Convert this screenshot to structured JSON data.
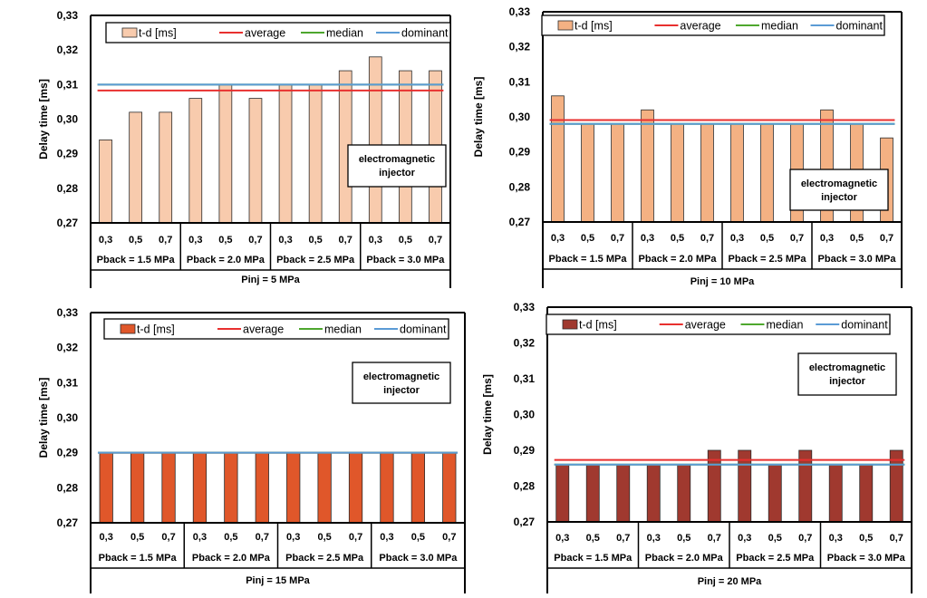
{
  "chart_data": [
    {
      "type": "bar",
      "panel": "top-left",
      "xlabel": "Pinj = 5 MPa",
      "ylabel": "Delay time [ms]",
      "ylim": [
        0.27,
        0.33
      ],
      "yticks": [
        "0,27",
        "0,28",
        "0,29",
        "0,30",
        "0,31",
        "0,32",
        "0,33"
      ],
      "categories": [
        "0,3",
        "0,5",
        "0,7",
        "0,3",
        "0,5",
        "0,7",
        "0,3",
        "0,5",
        "0,7",
        "0,3",
        "0,5",
        "0,7"
      ],
      "groups": [
        "Pback = 1.5 MPa",
        "Pback = 2.0 MPa",
        "Pback = 2.5 MPa",
        "Pback = 3.0 MPa"
      ],
      "series": [
        {
          "name": "t-d [ms]",
          "color": "#f8cbad",
          "values": [
            0.294,
            0.302,
            0.302,
            0.306,
            0.31,
            0.306,
            0.31,
            0.31,
            0.314,
            0.318,
            0.314,
            0.314
          ]
        }
      ],
      "lines": [
        {
          "name": "average",
          "color": "#e8302f",
          "value": 0.3083
        },
        {
          "name": "median",
          "color": "#4ea72e",
          "value": 0.31
        },
        {
          "name": "dominant",
          "color": "#5b9bd5",
          "value": 0.31
        }
      ],
      "annotation": [
        "electromagnetic",
        "injector"
      ]
    },
    {
      "type": "bar",
      "panel": "top-right",
      "xlabel": "Pinj = 10 MPa",
      "ylabel": "Delay time [ms]",
      "ylim": [
        0.27,
        0.33
      ],
      "yticks": [
        "0,27",
        "0,28",
        "0,29",
        "0,30",
        "0,31",
        "0,32",
        "0,33"
      ],
      "categories": [
        "0,3",
        "0,5",
        "0,7",
        "0,3",
        "0,5",
        "0,7",
        "0,3",
        "0,5",
        "0,7",
        "0,3",
        "0,5",
        "0,7"
      ],
      "groups": [
        "Pback = 1.5 MPa",
        "Pback = 2.0 MPa",
        "Pback = 2.5 MPa",
        "Pback = 3.0 MPa"
      ],
      "series": [
        {
          "name": "t-d [ms]",
          "color": "#f4b183",
          "values": [
            0.306,
            0.298,
            0.298,
            0.302,
            0.298,
            0.298,
            0.298,
            0.298,
            0.298,
            0.302,
            0.298,
            0.294
          ]
        }
      ],
      "lines": [
        {
          "name": "average",
          "color": "#e8302f",
          "value": 0.2991
        },
        {
          "name": "median",
          "color": "#4ea72e",
          "value": 0.298
        },
        {
          "name": "dominant",
          "color": "#5b9bd5",
          "value": 0.298
        }
      ],
      "annotation": [
        "electromagnetic",
        "injector"
      ]
    },
    {
      "type": "bar",
      "panel": "bottom-left",
      "xlabel": "Pinj = 15 MPa",
      "ylabel": "Delay time [ms]",
      "ylim": [
        0.27,
        0.33
      ],
      "yticks": [
        "0,27",
        "0,28",
        "0,29",
        "0,30",
        "0,31",
        "0,32",
        "0,33"
      ],
      "categories": [
        "0,3",
        "0,5",
        "0,7",
        "0,3",
        "0,5",
        "0,7",
        "0,3",
        "0,5",
        "0,7",
        "0,3",
        "0,5",
        "0,7"
      ],
      "groups": [
        "Pback = 1.5 MPa",
        "Pback = 2.0 MPa",
        "Pback = 2.5 MPa",
        "Pback = 3.0 MPa"
      ],
      "series": [
        {
          "name": "t-d [ms]",
          "color": "#e0572a",
          "values": [
            0.29,
            0.29,
            0.29,
            0.29,
            0.29,
            0.29,
            0.29,
            0.29,
            0.29,
            0.29,
            0.29,
            0.29
          ]
        }
      ],
      "lines": [
        {
          "name": "average",
          "color": "#e8302f",
          "value": 0.29
        },
        {
          "name": "median",
          "color": "#4ea72e",
          "value": 0.29
        },
        {
          "name": "dominant",
          "color": "#5b9bd5",
          "value": 0.29
        }
      ],
      "annotation": [
        "electromagnetic",
        "injector"
      ]
    },
    {
      "type": "bar",
      "panel": "bottom-right",
      "xlabel": "Pinj = 20 MPa",
      "ylabel": "Delay time [ms]",
      "ylim": [
        0.27,
        0.33
      ],
      "yticks": [
        "0,27",
        "0,28",
        "0,29",
        "0,30",
        "0,31",
        "0,32",
        "0,33"
      ],
      "categories": [
        "0,3",
        "0,5",
        "0,7",
        "0,3",
        "0,5",
        "0,7",
        "0,3",
        "0,5",
        "0,7",
        "0,3",
        "0,5",
        "0,7"
      ],
      "groups": [
        "Pback = 1.5 MPa",
        "Pback = 2.0 MPa",
        "Pback = 2.5 MPa",
        "Pback = 3.0 MPa"
      ],
      "series": [
        {
          "name": "t-d [ms]",
          "color": "#a0392f",
          "values": [
            0.286,
            0.286,
            0.286,
            0.286,
            0.286,
            0.29,
            0.29,
            0.286,
            0.29,
            0.286,
            0.286,
            0.29
          ]
        }
      ],
      "lines": [
        {
          "name": "average",
          "color": "#e8302f",
          "value": 0.2873
        },
        {
          "name": "median",
          "color": "#4ea72e",
          "value": 0.286
        },
        {
          "name": "dominant",
          "color": "#5b9bd5",
          "value": 0.286
        }
      ],
      "annotation": [
        "electromagnetic",
        "injector"
      ]
    }
  ]
}
